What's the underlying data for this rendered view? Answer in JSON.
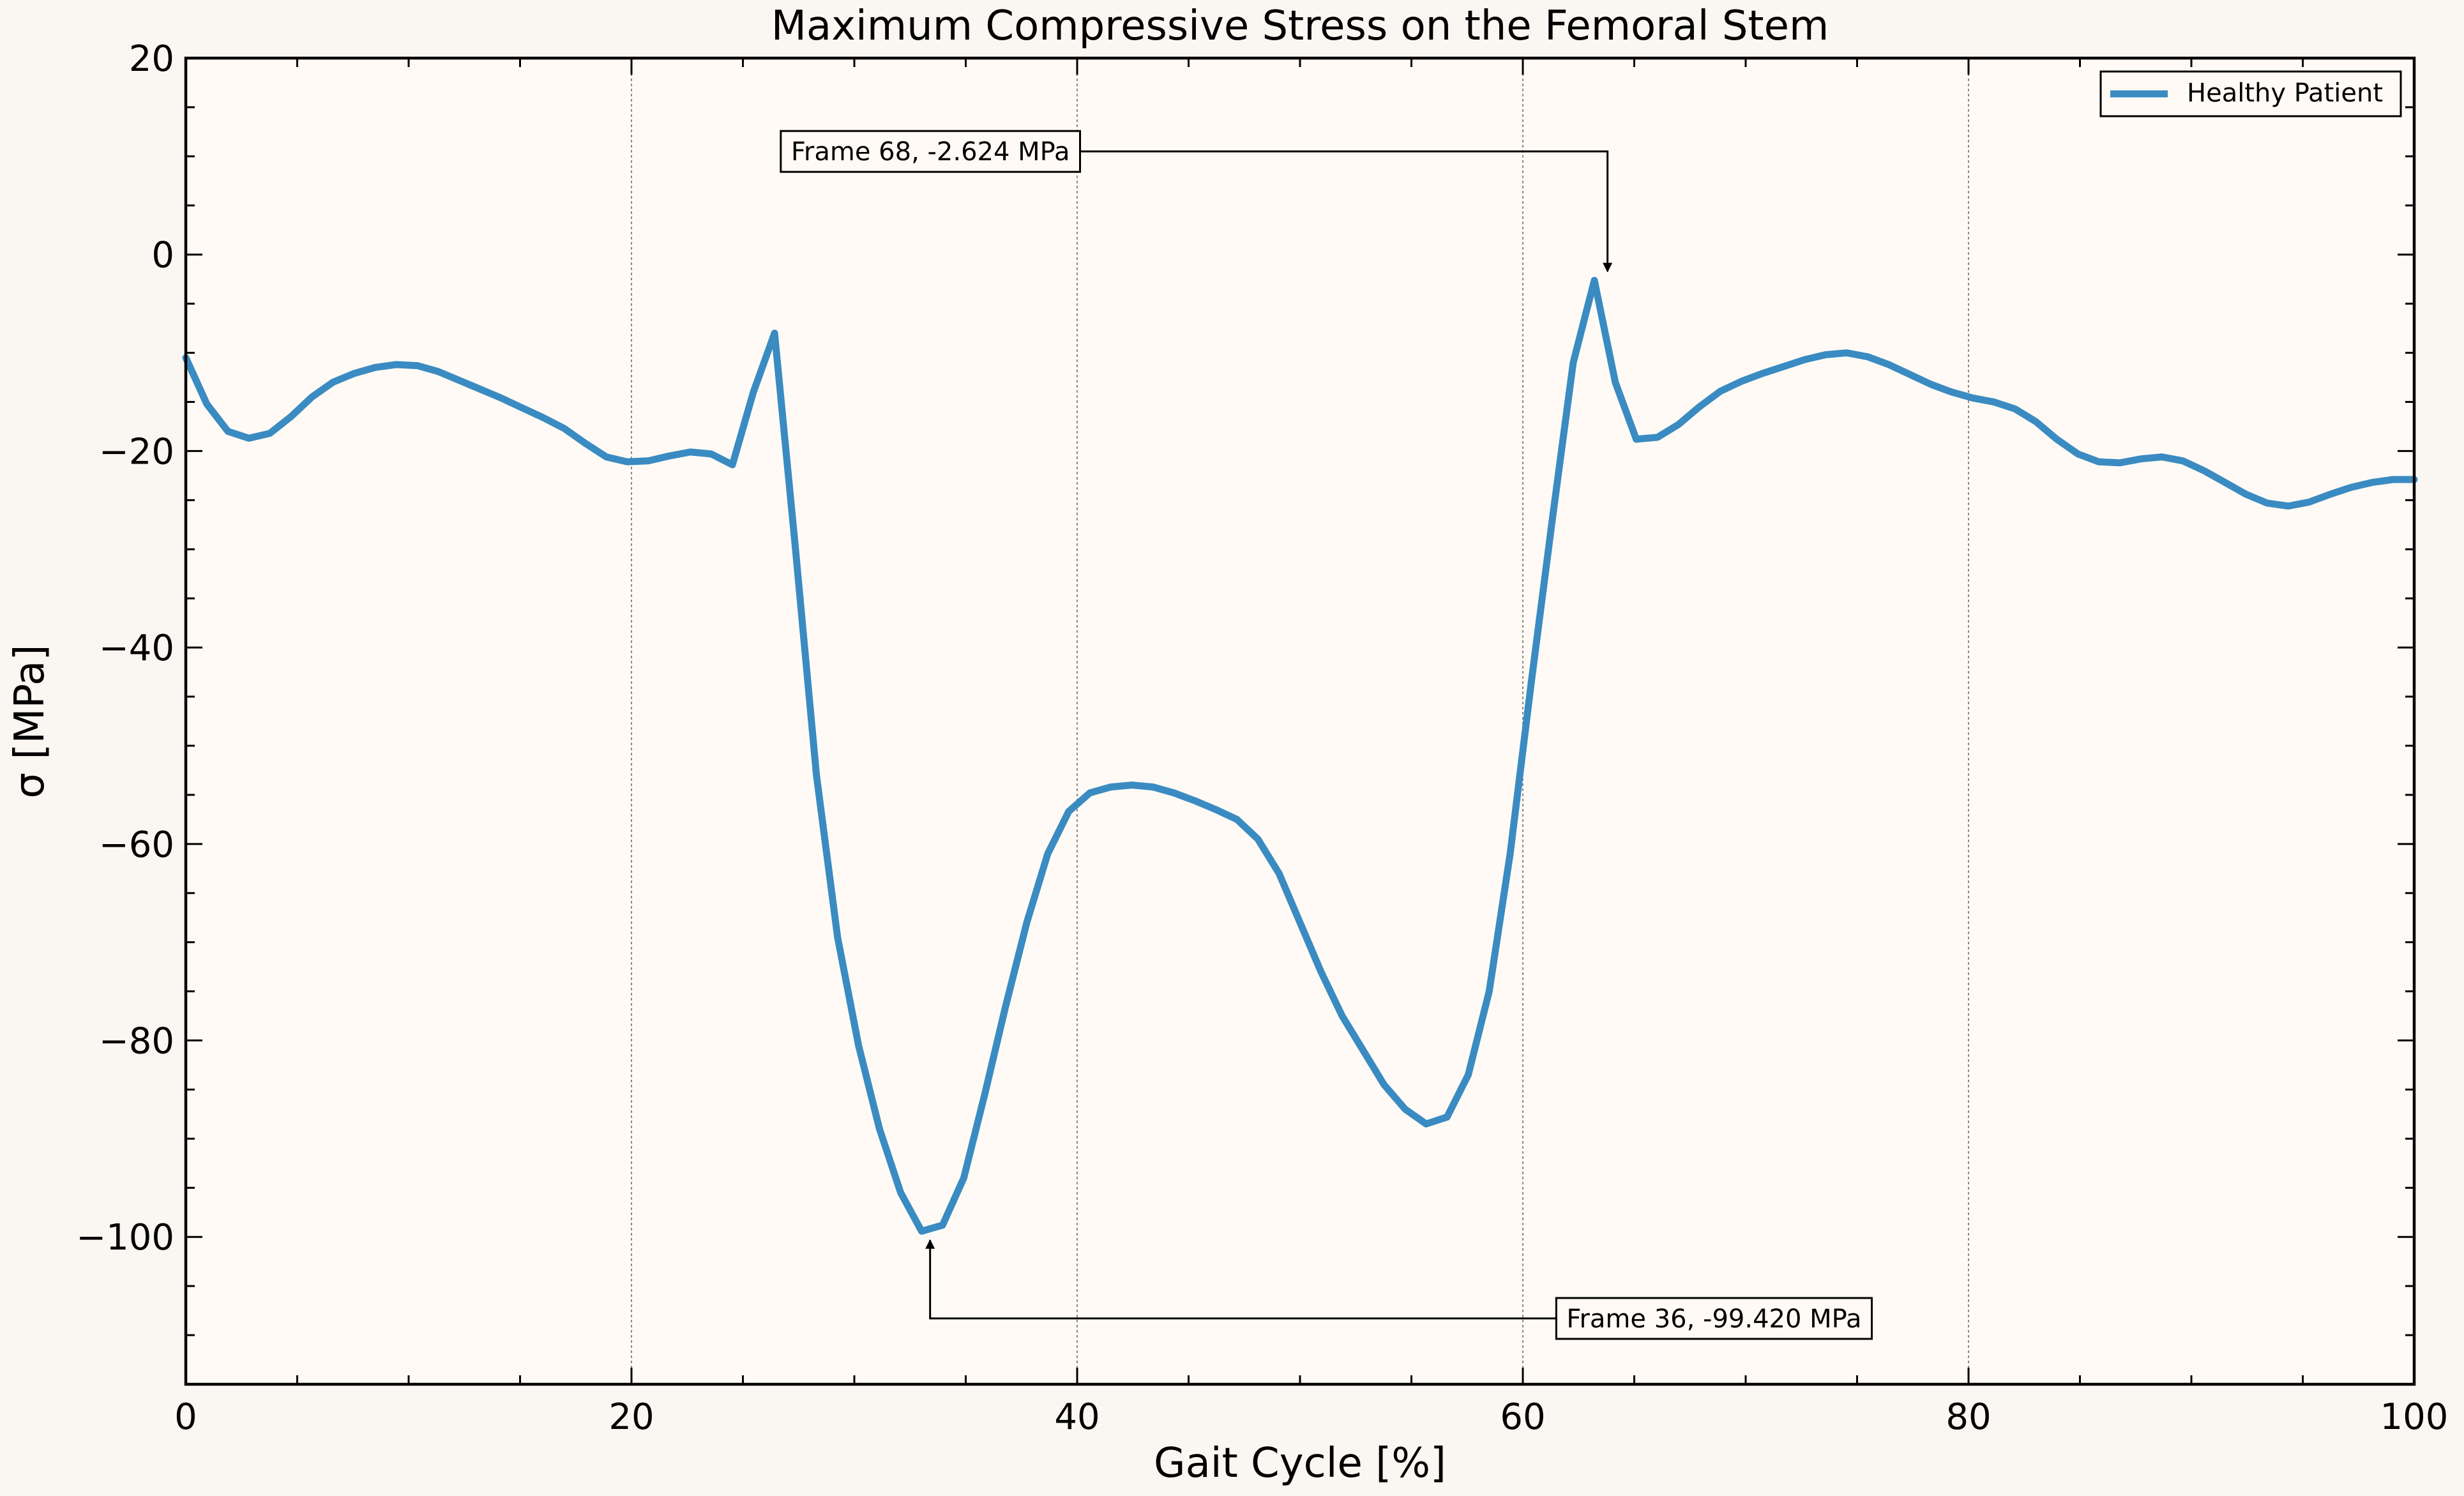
{
  "chart_data": {
    "type": "line",
    "title": "Maximum Compressive Stress on the Femoral Stem",
    "xlabel": "Gait Cycle [%]",
    "ylabel": "σ [MPa]",
    "xlim": [
      0,
      100
    ],
    "ylim": [
      -115,
      20
    ],
    "xticks": [
      0,
      20,
      40,
      60,
      80,
      100
    ],
    "xtick_labels": [
      "0",
      "20",
      "40",
      "60",
      "80",
      "100"
    ],
    "yticks": [
      20,
      0,
      -20,
      -40,
      -60,
      -80,
      -100
    ],
    "ytick_labels": [
      "20",
      "0",
      "−20",
      "−40",
      "−60",
      "−80",
      "−100"
    ],
    "grid": "vertical dotted lines at major x ticks",
    "legend_position": "top-right",
    "colors": {
      "line": "#3a8bc2",
      "background": "#fffaf5",
      "page": "#faf7f2",
      "grid": "#888888"
    },
    "series": [
      {
        "name": "Healthy Patient",
        "x": [
          0,
          0.94,
          1.89,
          2.83,
          3.77,
          4.72,
          5.66,
          6.6,
          7.55,
          8.49,
          9.43,
          10.38,
          11.32,
          12.26,
          13.21,
          14.15,
          15.09,
          16.04,
          16.98,
          17.92,
          18.87,
          19.81,
          20.75,
          21.7,
          22.64,
          23.58,
          24.53,
          25.47,
          26.42,
          27.36,
          28.3,
          29.25,
          30.19,
          31.13,
          32.08,
          33.02,
          33.96,
          34.91,
          35.85,
          36.79,
          37.74,
          38.68,
          39.62,
          40.57,
          41.51,
          42.45,
          43.4,
          44.34,
          45.28,
          46.23,
          47.17,
          48.11,
          49.06,
          50,
          50.94,
          51.89,
          52.83,
          53.77,
          54.72,
          55.66,
          56.6,
          57.55,
          58.49,
          59.43,
          60.38,
          61.32,
          62.26,
          63.21,
          64.15,
          65.09,
          66.04,
          66.98,
          67.92,
          68.87,
          69.81,
          70.75,
          71.7,
          72.64,
          73.58,
          74.53,
          75.47,
          76.42,
          77.36,
          78.3,
          79.25,
          80.19,
          81.13,
          82.08,
          83.02,
          83.96,
          84.91,
          85.85,
          86.79,
          87.74,
          88.68,
          89.62,
          90.57,
          91.51,
          92.45,
          93.4,
          94.34,
          95.28,
          96.23,
          97.17,
          98.11,
          99.06,
          100
        ],
        "values": [
          -10.5,
          -15.2,
          -18,
          -18.7,
          -18.2,
          -16.5,
          -14.5,
          -13,
          -12.1,
          -11.5,
          -11.2,
          -11.3,
          -11.9,
          -12.8,
          -13.7,
          -14.6,
          -15.6,
          -16.6,
          -17.7,
          -19.2,
          -20.6,
          -21.1,
          -21,
          -20.5,
          -20.1,
          -20.3,
          -21.4,
          -14,
          -8,
          -30,
          -53,
          -69.5,
          -80.5,
          -89,
          -95.5,
          -99.42,
          -98.8,
          -94,
          -85.5,
          -76.5,
          -68,
          -61,
          -56.7,
          -54.8,
          -54.2,
          -54,
          -54.2,
          -54.8,
          -55.6,
          -56.5,
          -57.5,
          -59.5,
          -63,
          -68,
          -73,
          -77.5,
          -81,
          -84.5,
          -87,
          -88.5,
          -87.8,
          -83.5,
          -75,
          -61,
          -43.5,
          -27,
          -11,
          -2.624,
          -13,
          -18.8,
          -18.6,
          -17.3,
          -15.5,
          -13.9,
          -12.9,
          -12.1,
          -11.4,
          -10.7,
          -10.2,
          -10,
          -10.4,
          -11.2,
          -12.2,
          -13.2,
          -14,
          -14.6,
          -15,
          -15.7,
          -17,
          -18.8,
          -20.3,
          -21.1,
          -21.2,
          -20.8,
          -20.6,
          -21,
          -22,
          -23.2,
          -24.4,
          -25.3,
          -25.6,
          -25.2,
          -24.4,
          -23.7,
          -23.2,
          -22.9,
          -22.9
        ]
      }
    ],
    "annotations": [
      {
        "text": "Frame 68, -2.624 MPa",
        "x": 63.8,
        "y": -2.624,
        "text_x": 26.7,
        "text_y": 10.5
      },
      {
        "text": "Frame 36, -99.420 MPa",
        "x": 33.4,
        "y": -99.42,
        "text_x": 61.5,
        "text_y": -108.3
      }
    ]
  }
}
